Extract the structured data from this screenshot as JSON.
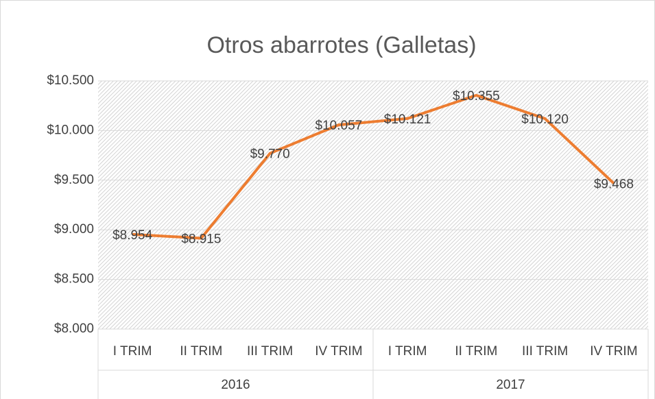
{
  "chart_data": {
    "type": "line",
    "title": "Otros abarrotes (Galletas)",
    "categories": [
      "I TRIM",
      "II TRIM",
      "III TRIM",
      "IV TRIM",
      "I TRIM",
      "II TRIM",
      "III TRIM",
      "IV TRIM"
    ],
    "category_groups": [
      "2016",
      "2017"
    ],
    "series": [
      {
        "name": "Otros abarrotes (Galletas)",
        "color": "#ed7d31",
        "values": [
          8954,
          8915,
          9770,
          10057,
          10121,
          10355,
          10120,
          9468
        ],
        "value_labels": [
          "$8.954",
          "$8.915",
          "$9.770",
          "$10.057",
          "$10.121",
          "$10.355",
          "$10.120",
          "$9.468"
        ]
      }
    ],
    "ylim": [
      8000,
      10500
    ],
    "yticks": [
      {
        "value": 8000,
        "label": "$8.000"
      },
      {
        "value": 8500,
        "label": "$8.500"
      },
      {
        "value": 9000,
        "label": "$9.000"
      },
      {
        "value": 9500,
        "label": "$9.500"
      },
      {
        "value": 10000,
        "label": "$10.000"
      },
      {
        "value": 10500,
        "label": "$10.500"
      }
    ],
    "grid": true
  }
}
